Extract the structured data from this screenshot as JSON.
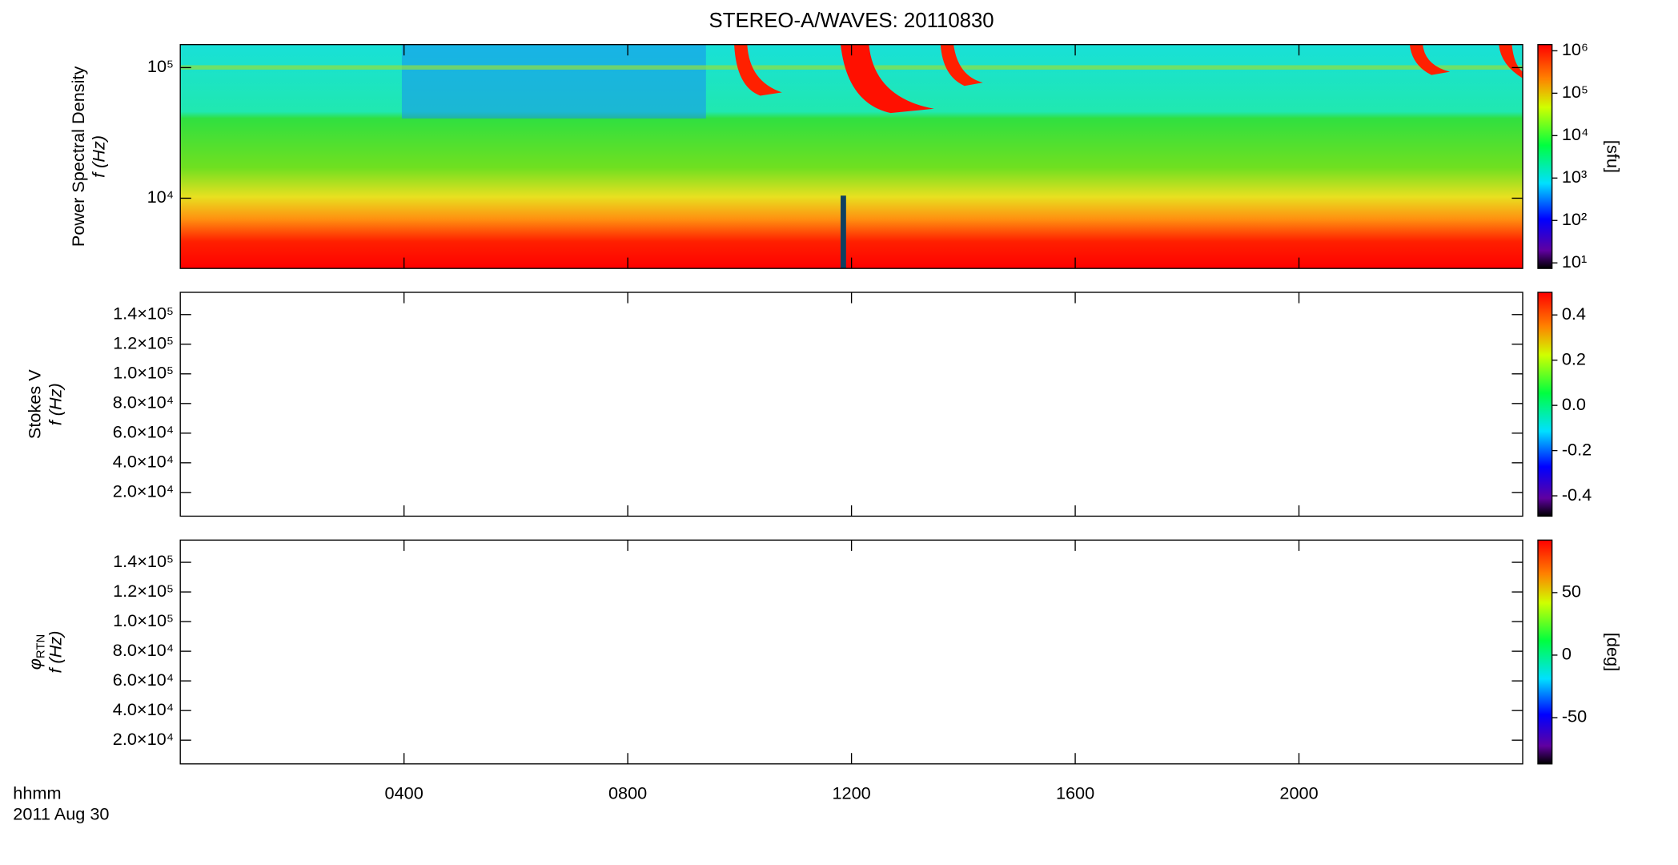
{
  "chart_data": [
    {
      "type": "spectrogram",
      "title": "STEREO-A/WAVES: 20110830",
      "ylabel": [
        "Power Spectral Density",
        "f (Hz)"
      ],
      "ylog": true,
      "ylim": [
        2900,
        150000
      ],
      "yticks": [
        {
          "value": 10000,
          "label": "10⁴"
        },
        {
          "value": 100000,
          "label": "10⁵"
        }
      ],
      "xlim": [
        0,
        24
      ],
      "xticks": [
        4,
        8,
        12,
        16,
        20
      ],
      "colorbar": {
        "label": "[sfu]",
        "log": true,
        "clim": [
          7.4,
          1400000
        ],
        "ticks": [
          {
            "value": 10,
            "label": "10¹"
          },
          {
            "value": 100,
            "label": "10²"
          },
          {
            "value": 1000,
            "label": "10³"
          },
          {
            "value": 10000,
            "label": "10⁴"
          },
          {
            "value": 100000,
            "label": "10⁵"
          },
          {
            "value": 1000000,
            "label": "10⁶"
          }
        ]
      }
    },
    {
      "type": "spectrogram",
      "ylabel": [
        "Stokes V",
        "f (Hz)"
      ],
      "ylog": false,
      "ylim": [
        4000,
        155000
      ],
      "yticks": [
        {
          "value": 20000,
          "label": "2.0×10⁴"
        },
        {
          "value": 40000,
          "label": "4.0×10⁴"
        },
        {
          "value": 60000,
          "label": "6.0×10⁴"
        },
        {
          "value": 80000,
          "label": "8.0×10⁴"
        },
        {
          "value": 100000,
          "label": "1.0×10⁵"
        },
        {
          "value": 120000,
          "label": "1.2×10⁵"
        },
        {
          "value": 140000,
          "label": "1.4×10⁵"
        }
      ],
      "xlim": [
        0,
        24
      ],
      "xticks": [
        4,
        8,
        12,
        16,
        20
      ],
      "colorbar": {
        "log": false,
        "clim": [
          -0.49,
          0.5
        ],
        "ticks": [
          -0.4,
          -0.2,
          {
            "value": 0,
            "label": "0.0"
          },
          0.2,
          0.4
        ]
      }
    },
    {
      "type": "spectrogram",
      "ylabel": [
        {
          "symbol": "φ",
          "subscript": "RTN"
        },
        "f (Hz)"
      ],
      "ylog": false,
      "ylim": [
        4000,
        155000
      ],
      "yticks": [
        {
          "value": 20000,
          "label": "2.0×10⁴"
        },
        {
          "value": 40000,
          "label": "4.0×10⁴"
        },
        {
          "value": 60000,
          "label": "6.0×10⁴"
        },
        {
          "value": 80000,
          "label": "8.0×10⁴"
        },
        {
          "value": 100000,
          "label": "1.0×10⁵"
        },
        {
          "value": 120000,
          "label": "1.2×10⁵"
        },
        {
          "value": 140000,
          "label": "1.4×10⁵"
        }
      ],
      "xlim": [
        0,
        24
      ],
      "xticks": [
        {
          "value": 4,
          "label": "0400"
        },
        {
          "value": 8,
          "label": "0800"
        },
        {
          "value": 12,
          "label": "1200"
        },
        {
          "value": 16,
          "label": "1600"
        },
        {
          "value": 20,
          "label": "2000"
        }
      ],
      "xlabel": [
        "hhmm",
        "2011 Aug 30"
      ],
      "colorbar": {
        "label": "[deg]",
        "log": false,
        "clim": [
          -87,
          92
        ],
        "ticks": [
          -50,
          0,
          50
        ]
      }
    }
  ]
}
